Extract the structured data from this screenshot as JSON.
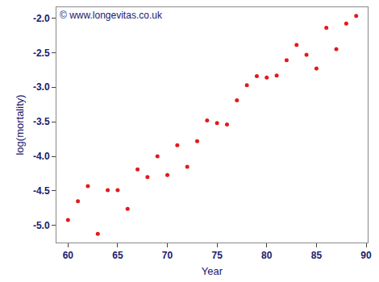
{
  "chart_data": {
    "type": "scatter",
    "x_label": "Year",
    "y_label": "log(mortality)",
    "annotations": [
      {
        "text": "© www.longevitas.co.uk"
      }
    ],
    "x": [
      60,
      61,
      62,
      63,
      64,
      65,
      66,
      67,
      68,
      69,
      70,
      71,
      72,
      73,
      74,
      75,
      76,
      77,
      78,
      79,
      80,
      81,
      82,
      83,
      84,
      85,
      86,
      87,
      88,
      89
    ],
    "values": [
      -4.92,
      -4.65,
      -4.43,
      -5.12,
      -4.49,
      -4.49,
      -4.76,
      -4.19,
      -4.3,
      -4.0,
      -4.27,
      -3.84,
      -4.15,
      -3.78,
      -3.48,
      -3.52,
      -3.54,
      -3.19,
      -2.97,
      -2.84,
      -2.86,
      -2.83,
      -2.61,
      -2.39,
      -2.53,
      -2.73,
      -2.14,
      -2.45,
      -2.08,
      -1.97
    ],
    "color": "#e31a1c",
    "marker": "circle",
    "xlim": [
      58.84,
      90.16
    ],
    "xticks": [
      60,
      65,
      70,
      75,
      80,
      85,
      90
    ],
    "ylim": [
      -5.246,
      -1.844
    ],
    "yticks": [
      {
        "value": -5,
        "label": "-5.0"
      },
      -4.5,
      {
        "value": -4,
        "label": "-4.0"
      },
      -3.5,
      {
        "value": -3,
        "label": "-3.0"
      },
      -2.5,
      {
        "value": -2,
        "label": "-2.0"
      }
    ],
    "grid": false
  }
}
